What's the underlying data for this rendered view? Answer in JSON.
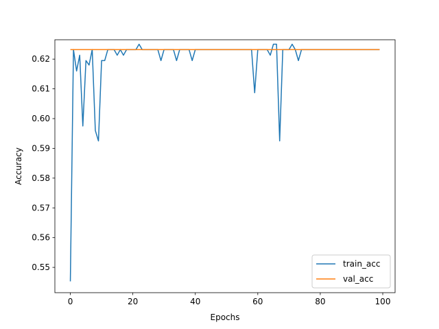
{
  "chart_data": {
    "type": "line",
    "xlabel": "Epochs",
    "ylabel": "Accuracy",
    "xlim": [
      -4.95,
      103.95
    ],
    "ylim": [
      0.5415,
      0.6265
    ],
    "xticks": [
      0,
      20,
      40,
      60,
      80,
      100
    ],
    "yticks": [
      0.55,
      0.56,
      0.57,
      0.58,
      0.59,
      0.6,
      0.61,
      0.62
    ],
    "ytick_labels": [
      "0.55",
      "0.56",
      "0.57",
      "0.58",
      "0.59",
      "0.60",
      "0.61",
      "0.62"
    ],
    "grid": false,
    "legend_position": "lower-right",
    "series": [
      {
        "name": "train_acc",
        "color": "#1f77b4",
        "x": [
          0,
          1,
          2,
          3,
          4,
          5,
          6,
          7,
          8,
          9,
          10,
          11,
          12,
          13,
          14,
          15,
          16,
          17,
          18,
          19,
          20,
          21,
          22,
          23,
          24,
          25,
          26,
          27,
          28,
          29,
          30,
          31,
          32,
          33,
          34,
          35,
          36,
          37,
          38,
          39,
          40,
          41,
          42,
          43,
          44,
          45,
          46,
          47,
          48,
          49,
          50,
          51,
          52,
          53,
          54,
          55,
          56,
          57,
          58,
          59,
          60,
          61,
          62,
          63,
          64,
          65,
          66,
          67,
          68,
          69,
          70,
          71,
          72,
          73,
          74,
          75,
          76,
          77,
          78,
          79,
          80,
          81,
          82,
          83,
          84,
          85,
          86,
          87,
          88,
          89,
          90,
          91,
          92,
          93,
          94,
          95,
          96,
          97,
          98,
          99
        ],
        "y": [
          0.5453,
          0.6232,
          0.616,
          0.6213,
          0.5975,
          0.6195,
          0.618,
          0.6232,
          0.596,
          0.5925,
          0.6195,
          0.6195,
          0.6232,
          0.6232,
          0.6232,
          0.6213,
          0.6232,
          0.6213,
          0.6232,
          0.6232,
          0.6232,
          0.6232,
          0.625,
          0.6232,
          0.6232,
          0.6232,
          0.6232,
          0.6232,
          0.6232,
          0.6195,
          0.6232,
          0.6232,
          0.6232,
          0.6232,
          0.6195,
          0.6232,
          0.6232,
          0.6232,
          0.6232,
          0.6195,
          0.6232,
          0.6232,
          0.6232,
          0.6232,
          0.6232,
          0.6232,
          0.6232,
          0.6232,
          0.6232,
          0.6232,
          0.6232,
          0.6232,
          0.6232,
          0.6232,
          0.6232,
          0.6232,
          0.6232,
          0.6232,
          0.6232,
          0.6087,
          0.6232,
          0.6232,
          0.6232,
          0.6232,
          0.6213,
          0.625,
          0.625,
          0.5925,
          0.6232,
          0.6232,
          0.6232,
          0.625,
          0.6232,
          0.6195,
          0.6232,
          0.6232,
          0.6232,
          0.6232,
          0.6232,
          0.6232,
          0.6232,
          0.6232,
          0.6232,
          0.6232,
          0.6232,
          0.6232,
          0.6232,
          0.6232,
          0.6232,
          0.6232,
          0.6232,
          0.6232,
          0.6232,
          0.6232,
          0.6232,
          0.6232,
          0.6232,
          0.6232,
          0.6232,
          0.6232
        ]
      },
      {
        "name": "val_acc",
        "color": "#ff7f0e",
        "x": [
          0,
          1,
          2,
          3,
          4,
          5,
          6,
          7,
          8,
          9,
          10,
          11,
          12,
          13,
          14,
          15,
          16,
          17,
          18,
          19,
          20,
          21,
          22,
          23,
          24,
          25,
          26,
          27,
          28,
          29,
          30,
          31,
          32,
          33,
          34,
          35,
          36,
          37,
          38,
          39,
          40,
          41,
          42,
          43,
          44,
          45,
          46,
          47,
          48,
          49,
          50,
          51,
          52,
          53,
          54,
          55,
          56,
          57,
          58,
          59,
          60,
          61,
          62,
          63,
          64,
          65,
          66,
          67,
          68,
          69,
          70,
          71,
          72,
          73,
          74,
          75,
          76,
          77,
          78,
          79,
          80,
          81,
          82,
          83,
          84,
          85,
          86,
          87,
          88,
          89,
          90,
          91,
          92,
          93,
          94,
          95,
          96,
          97,
          98,
          99
        ],
        "y": [
          0.6232,
          0.6232,
          0.6232,
          0.6232,
          0.6232,
          0.6232,
          0.6232,
          0.6232,
          0.6232,
          0.6232,
          0.6232,
          0.6232,
          0.6232,
          0.6232,
          0.6232,
          0.6232,
          0.6232,
          0.6232,
          0.6232,
          0.6232,
          0.6232,
          0.6232,
          0.6232,
          0.6232,
          0.6232,
          0.6232,
          0.6232,
          0.6232,
          0.6232,
          0.6232,
          0.6232,
          0.6232,
          0.6232,
          0.6232,
          0.6232,
          0.6232,
          0.6232,
          0.6232,
          0.6232,
          0.6232,
          0.6232,
          0.6232,
          0.6232,
          0.6232,
          0.6232,
          0.6232,
          0.6232,
          0.6232,
          0.6232,
          0.6232,
          0.6232,
          0.6232,
          0.6232,
          0.6232,
          0.6232,
          0.6232,
          0.6232,
          0.6232,
          0.6232,
          0.6232,
          0.6232,
          0.6232,
          0.6232,
          0.6232,
          0.6232,
          0.6232,
          0.6232,
          0.6232,
          0.6232,
          0.6232,
          0.6232,
          0.6232,
          0.6232,
          0.6232,
          0.6232,
          0.6232,
          0.6232,
          0.6232,
          0.6232,
          0.6232,
          0.6232,
          0.6232,
          0.6232,
          0.6232,
          0.6232,
          0.6232,
          0.6232,
          0.6232,
          0.6232,
          0.6232,
          0.6232,
          0.6232,
          0.6232,
          0.6232,
          0.6232,
          0.6232,
          0.6232,
          0.6232,
          0.6232,
          0.6232
        ]
      }
    ]
  }
}
